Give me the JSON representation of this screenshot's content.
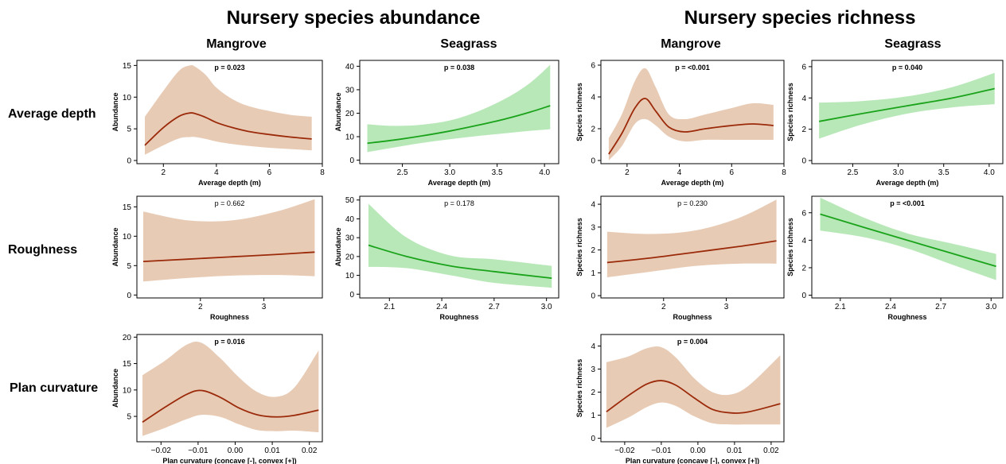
{
  "section_titles": [
    "Nursery species abundance",
    "Nursery species richness"
  ],
  "column_titles": [
    "Mangrove",
    "Seagrass",
    "Mangrove",
    "Seagrass"
  ],
  "row_labels": [
    "Average depth",
    "Roughness",
    "Plan curvature"
  ],
  "colors": {
    "mangrove_line": "#9b2a0a",
    "mangrove_band": "#e8cbb5",
    "seagrass_line": "#1aa31a",
    "seagrass_band": "#b8e8b8"
  },
  "chart_data": [
    {
      "id": "abundance-mangrove-depth",
      "type": "line",
      "habitat": "mangrove",
      "xlabel": "Average depth (m)",
      "ylabel": "Abundance",
      "p_value": "p = 0.023",
      "p_bold": true,
      "xlim": [
        1.0,
        8.0
      ],
      "ylim": [
        -0.5,
        15.8
      ],
      "xticks": [
        2,
        4,
        6,
        8
      ],
      "xtick_labels": [
        "2",
        "4",
        "6",
        "8"
      ],
      "yticks": [
        0,
        5,
        10,
        15
      ],
      "ytick_labels": [
        "0",
        "5",
        "10",
        "15"
      ],
      "x": [
        1.3,
        2.0,
        2.6,
        3.0,
        3.2,
        3.6,
        4.0,
        4.6,
        5.2,
        6.0,
        6.8,
        7.6
      ],
      "y": [
        2.4,
        5.2,
        7.0,
        7.5,
        7.4,
        6.8,
        6.0,
        5.2,
        4.6,
        4.1,
        3.7,
        3.4
      ],
      "lower": [
        0.9,
        2.4,
        3.5,
        3.7,
        3.7,
        3.4,
        3.0,
        2.6,
        2.3,
        2.0,
        1.8,
        1.6
      ],
      "upper": [
        6.9,
        11.0,
        14.2,
        15.0,
        14.8,
        13.5,
        11.5,
        9.7,
        8.6,
        7.8,
        7.2,
        6.9
      ]
    },
    {
      "id": "abundance-seagrass-depth",
      "type": "line",
      "habitat": "seagrass",
      "xlabel": "Average depth (m)",
      "ylabel": "Abundance",
      "p_value": "p = 0.038",
      "p_bold": true,
      "xlim": [
        2.05,
        4.15
      ],
      "ylim": [
        -1.5,
        42.5
      ],
      "xticks": [
        2.5,
        3.0,
        3.5,
        4.0
      ],
      "xtick_labels": [
        "2.5",
        "3.0",
        "3.5",
        "4.0"
      ],
      "yticks": [
        0,
        10,
        20,
        30,
        40
      ],
      "ytick_labels": [
        "0",
        "10",
        "20",
        "30",
        "40"
      ],
      "x": [
        2.13,
        2.4,
        2.7,
        3.0,
        3.3,
        3.6,
        3.85,
        4.06
      ],
      "y": [
        7.2,
        8.5,
        10.3,
        12.4,
        14.9,
        17.7,
        20.5,
        23.2
      ],
      "lower": [
        3.4,
        5.3,
        7.3,
        8.9,
        10.3,
        11.5,
        12.5,
        13.2
      ],
      "upper": [
        15.3,
        14.6,
        15.1,
        16.9,
        20.8,
        26.5,
        33.0,
        40.6
      ]
    },
    {
      "id": "richness-mangrove-depth",
      "type": "line",
      "habitat": "mangrove",
      "xlabel": "Average depth (m)",
      "ylabel": "Species richness",
      "p_value": "p = <0.001",
      "p_bold": true,
      "xlim": [
        1.0,
        8.0
      ],
      "ylim": [
        -0.2,
        6.3
      ],
      "xticks": [
        2,
        4,
        6,
        8
      ],
      "xtick_labels": [
        "2",
        "4",
        "6",
        "8"
      ],
      "yticks": [
        0,
        2,
        4,
        6
      ],
      "ytick_labels": [
        "0",
        "2",
        "4",
        "6"
      ],
      "x": [
        1.3,
        1.8,
        2.3,
        2.7,
        3.1,
        3.6,
        4.2,
        5.0,
        6.0,
        6.8,
        7.6
      ],
      "y": [
        0.4,
        1.7,
        3.3,
        3.9,
        3.1,
        2.1,
        1.8,
        2.0,
        2.2,
        2.3,
        2.2
      ],
      "lower": [
        0.0,
        0.9,
        2.3,
        2.6,
        2.2,
        1.5,
        1.2,
        1.3,
        1.3,
        1.3,
        1.3
      ],
      "upper": [
        1.4,
        2.9,
        5.0,
        5.8,
        4.6,
        2.9,
        2.6,
        2.9,
        3.3,
        3.6,
        3.5
      ]
    },
    {
      "id": "richness-seagrass-depth",
      "type": "line",
      "habitat": "seagrass",
      "xlabel": "Average depth (m)",
      "ylabel": "Species richness",
      "p_value": "p = 0.040",
      "p_bold": true,
      "xlim": [
        2.05,
        4.15
      ],
      "ylim": [
        -0.2,
        6.4
      ],
      "xticks": [
        2.5,
        3.0,
        3.5,
        4.0
      ],
      "xtick_labels": [
        "2.5",
        "3.0",
        "3.5",
        "4.0"
      ],
      "yticks": [
        0,
        2,
        4,
        6
      ],
      "ytick_labels": [
        "0",
        "2",
        "4",
        "6"
      ],
      "x": [
        2.13,
        2.6,
        3.1,
        3.6,
        4.06
      ],
      "y": [
        2.5,
        3.0,
        3.5,
        4.0,
        4.6
      ],
      "lower": [
        1.4,
        2.3,
        3.0,
        3.4,
        3.6
      ],
      "upper": [
        3.7,
        3.8,
        4.1,
        4.7,
        5.6
      ]
    },
    {
      "id": "abundance-mangrove-roughness",
      "type": "line",
      "habitat": "mangrove",
      "xlabel": "Roughness",
      "ylabel": "Abundance",
      "p_value": "p = 0.662",
      "p_bold": false,
      "xlim": [
        1.0,
        3.92
      ],
      "ylim": [
        -0.5,
        16.8
      ],
      "xticks": [
        2,
        3
      ],
      "xtick_labels": [
        "2",
        "3"
      ],
      "yticks": [
        0,
        5,
        10,
        15
      ],
      "ytick_labels": [
        "0",
        "5",
        "10",
        "15"
      ],
      "x": [
        1.1,
        1.8,
        2.5,
        3.2,
        3.8
      ],
      "y": [
        5.7,
        6.1,
        6.5,
        6.9,
        7.3
      ],
      "lower": [
        2.3,
        2.9,
        3.3,
        3.4,
        3.2
      ],
      "upper": [
        14.2,
        12.7,
        12.7,
        14.2,
        16.3
      ]
    },
    {
      "id": "abundance-seagrass-roughness",
      "type": "line",
      "habitat": "seagrass",
      "xlabel": "Roughness",
      "ylabel": "Abundance",
      "p_value": "p = 0.178",
      "p_bold": false,
      "xlim": [
        1.93,
        3.07
      ],
      "ylim": [
        -2,
        52
      ],
      "xticks": [
        2.1,
        2.4,
        2.7,
        3.0
      ],
      "xtick_labels": [
        "2.1",
        "2.4",
        "2.7",
        "3.0"
      ],
      "yticks": [
        0,
        10,
        20,
        30,
        40,
        50
      ],
      "ytick_labels": [
        "0",
        "10",
        "20",
        "30",
        "40",
        "50"
      ],
      "x": [
        1.98,
        2.2,
        2.45,
        2.7,
        3.03
      ],
      "y": [
        26,
        20,
        15,
        12,
        8.5
      ],
      "lower": [
        14.5,
        13.8,
        10.0,
        6.0,
        3.4
      ],
      "upper": [
        48,
        30,
        20.5,
        18.5,
        15
      ]
    },
    {
      "id": "richness-mangrove-roughness",
      "type": "line",
      "habitat": "mangrove",
      "xlabel": "Roughness",
      "ylabel": "Species richness",
      "p_value": "p = 0.230",
      "p_bold": false,
      "xlim": [
        1.0,
        3.92
      ],
      "ylim": [
        -0.1,
        4.35
      ],
      "xticks": [
        2,
        3
      ],
      "xtick_labels": [
        "2",
        "3"
      ],
      "yticks": [
        0,
        1,
        2,
        3,
        4
      ],
      "ytick_labels": [
        "0",
        "1",
        "2",
        "3",
        "4"
      ],
      "x": [
        1.1,
        1.8,
        2.5,
        3.2,
        3.8
      ],
      "y": [
        1.45,
        1.65,
        1.9,
        2.15,
        2.4
      ],
      "lower": [
        0.8,
        1.05,
        1.3,
        1.4,
        1.4
      ],
      "upper": [
        2.8,
        2.7,
        2.85,
        3.4,
        4.2
      ]
    },
    {
      "id": "richness-seagrass-roughness",
      "type": "line",
      "habitat": "seagrass",
      "xlabel": "Roughness",
      "ylabel": "Species richness",
      "p_value": "p = <0.001",
      "p_bold": true,
      "xlim": [
        1.93,
        3.07
      ],
      "ylim": [
        -0.2,
        7.2
      ],
      "xticks": [
        2.1,
        2.4,
        2.7,
        3.0
      ],
      "xtick_labels": [
        "2.1",
        "2.4",
        "2.7",
        "3.0"
      ],
      "yticks": [
        0,
        2,
        4,
        6
      ],
      "ytick_labels": [
        "0",
        "2",
        "4",
        "6"
      ],
      "x": [
        1.98,
        2.25,
        2.5,
        2.75,
        3.03
      ],
      "y": [
        5.9,
        4.9,
        4.0,
        3.1,
        2.1
      ],
      "lower": [
        4.7,
        4.2,
        3.4,
        2.3,
        1.1
      ],
      "upper": [
        7.1,
        5.6,
        4.5,
        3.8,
        3.0
      ]
    },
    {
      "id": "abundance-mangrove-curvature",
      "type": "line",
      "habitat": "mangrove",
      "xlabel": "Plan curvature (concave [-], convex [+])",
      "ylabel": "Abundance",
      "p_value": "p = 0.016",
      "p_bold": true,
      "xlim": [
        -0.0265,
        0.0235
      ],
      "ylim": [
        0.2,
        20.5
      ],
      "xticks": [
        -0.02,
        -0.01,
        0.0,
        0.01,
        0.02
      ],
      "xtick_labels": [
        "−0.02",
        "−0.01",
        "0.00",
        "0.01",
        "0.02"
      ],
      "yticks": [
        5,
        10,
        15,
        20
      ],
      "ytick_labels": [
        "5",
        "10",
        "15",
        "20"
      ],
      "x": [
        -0.025,
        -0.019,
        -0.013,
        -0.009,
        -0.004,
        0.001,
        0.006,
        0.011,
        0.016,
        0.0225
      ],
      "y": [
        3.9,
        6.7,
        9.2,
        9.9,
        8.6,
        6.6,
        5.3,
        4.9,
        5.2,
        6.2
      ],
      "lower": [
        1.3,
        2.8,
        4.5,
        5.3,
        4.9,
        3.5,
        2.4,
        2.2,
        2.3,
        2.0
      ],
      "upper": [
        12.8,
        15.5,
        18.6,
        18.9,
        16.0,
        12.4,
        9.6,
        8.7,
        10.5,
        17.5
      ]
    },
    {
      "id": "richness-mangrove-curvature",
      "type": "line",
      "habitat": "mangrove",
      "xlabel": "Plan curvature (concave [-], convex [+])",
      "ylabel": "Species richness",
      "p_value": "p = 0.004",
      "p_bold": true,
      "xlim": [
        -0.0265,
        0.0235
      ],
      "ylim": [
        -0.15,
        4.5
      ],
      "xticks": [
        -0.02,
        -0.01,
        0.0,
        0.01,
        0.02
      ],
      "xtick_labels": [
        "−0.02",
        "−0.01",
        "0.00",
        "0.01",
        "0.02"
      ],
      "yticks": [
        0,
        1,
        2,
        3,
        4
      ],
      "ytick_labels": [
        "0",
        "1",
        "2",
        "3",
        "4"
      ],
      "x": [
        -0.025,
        -0.019,
        -0.014,
        -0.01,
        -0.006,
        -0.001,
        0.004,
        0.009,
        0.014,
        0.0225
      ],
      "y": [
        1.15,
        1.85,
        2.35,
        2.5,
        2.3,
        1.75,
        1.25,
        1.1,
        1.15,
        1.5
      ],
      "lower": [
        0.45,
        0.9,
        1.35,
        1.55,
        1.4,
        0.95,
        0.65,
        0.6,
        0.6,
        0.6
      ],
      "upper": [
        3.3,
        3.55,
        3.9,
        3.95,
        3.5,
        2.6,
        2.0,
        1.9,
        2.3,
        3.6
      ]
    }
  ]
}
